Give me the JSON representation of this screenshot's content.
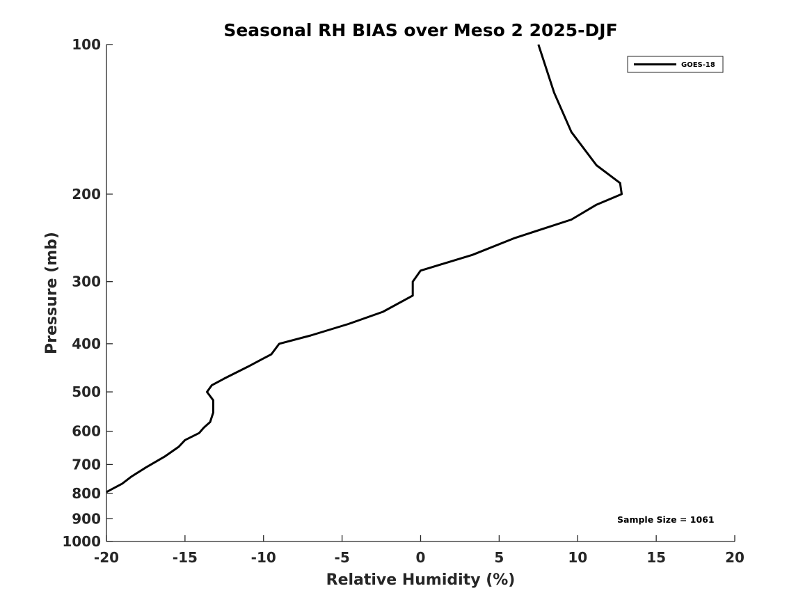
{
  "chart_data": {
    "type": "line",
    "title": "Seasonal RH BIAS over Meso 2  2025-DJF",
    "xlabel": "Relative Humidity (%)",
    "ylabel": "Pressure (mb)",
    "xlim": [
      -20,
      20
    ],
    "ylim": [
      100,
      1000
    ],
    "y_scale": "log",
    "y_reversed": true,
    "grid": false,
    "legend_position": "top-right",
    "x_ticks": [
      -20,
      -15,
      -10,
      -5,
      0,
      5,
      10,
      15,
      20
    ],
    "y_ticks": [
      100,
      200,
      300,
      400,
      500,
      600,
      700,
      800,
      900,
      1000
    ],
    "series": [
      {
        "name": "GOES-18",
        "color": "#000000",
        "x": [
          7.5,
          8.5,
          9.6,
          11.2,
          12.7,
          12.8,
          11.2,
          9.6,
          6.0,
          3.3,
          0.0,
          -0.5,
          -0.5,
          -2.4,
          -4.6,
          -7.0,
          -9.0,
          -9.5,
          -11.0,
          -12.5,
          -13.3,
          -13.6,
          -13.2,
          -13.2,
          -13.4,
          -13.8,
          -14.1,
          -15.0,
          -15.4,
          -16.3,
          -17.5,
          -18.4,
          -19.0,
          -20.0
        ],
        "y": [
          100,
          125,
          150,
          175,
          190,
          200,
          210,
          225,
          245,
          265,
          285,
          300,
          320,
          345,
          365,
          385,
          400,
          420,
          445,
          470,
          485,
          500,
          520,
          550,
          575,
          590,
          605,
          625,
          645,
          675,
          710,
          740,
          765,
          795
        ]
      }
    ],
    "annotations": [
      {
        "text": "Sample Size = 1061"
      }
    ]
  }
}
